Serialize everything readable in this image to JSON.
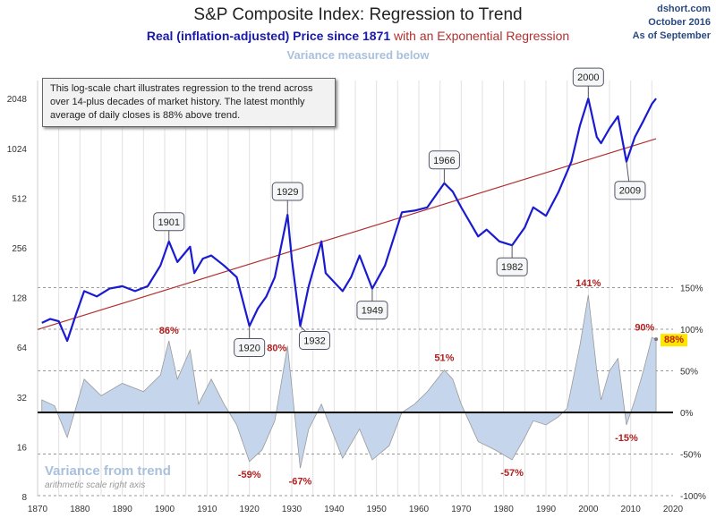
{
  "header": {
    "title": "S&P Composite Index: Regression to Trend",
    "subtitle_blue": "Real (inflation-adjusted) Price since 1871",
    "subtitle_red": " with an Exponential Regression",
    "subtitle_light": "Variance measured below",
    "source": "dshort.com",
    "date": "October 2016",
    "as_of": "As of September"
  },
  "note": "This log-scale chart illustrates regression to the trend across over 14-plus decades of market history. The latest monthly average of daily closes is 88% above trend.",
  "variance_label": {
    "title": "Variance from trend",
    "subtitle": "arithmetic scale right axis"
  },
  "colors": {
    "price": "#1a1ad0",
    "trend": "#b03030",
    "variance_fill": "#c5d6ec",
    "variance_line": "#999999",
    "annotation": "#b02020",
    "highlight": "#ffe600"
  },
  "chart_data": {
    "type": "line",
    "x_ticks": [
      "1870",
      "1880",
      "1890",
      "1900",
      "1910",
      "1920",
      "1930",
      "1940",
      "1950",
      "1960",
      "1970",
      "1980",
      "1990",
      "2000",
      "2010",
      "2020"
    ],
    "xlim": [
      1870,
      2020
    ],
    "left_axis": {
      "scale": "log2",
      "ticks": [
        "8",
        "16",
        "32",
        "64",
        "128",
        "256",
        "512",
        "1024",
        "2048"
      ],
      "ylim": [
        8,
        2048
      ]
    },
    "right_axis": {
      "scale": "linear",
      "ticks": [
        "-100%",
        "-50%",
        "0%",
        "50%",
        "100%",
        "150%"
      ],
      "ylim": [
        -100,
        150
      ]
    },
    "grid": true,
    "series": [
      {
        "kind": "price",
        "x": [
          1871,
          1873,
          1875,
          1877,
          1879,
          1881,
          1884,
          1887,
          1890,
          1893,
          1896,
          1899,
          1901,
          1903,
          1906,
          1907,
          1909,
          1911,
          1914,
          1917,
          1920,
          1922,
          1924,
          1926,
          1929,
          1930,
          1932,
          1934,
          1937,
          1938,
          1942,
          1944,
          1946,
          1949,
          1952,
          1956,
          1959,
          1962,
          1966,
          1968,
          1970,
          1974,
          1976,
          1979,
          1982,
          1985,
          1987,
          1990,
          1993,
          1996,
          1998,
          2000,
          2002,
          2003,
          2005,
          2007,
          2009,
          2011,
          2013,
          2015,
          2016
        ],
        "y": [
          90,
          95,
          92,
          70,
          100,
          140,
          130,
          145,
          150,
          140,
          150,
          200,
          280,
          210,
          260,
          180,
          220,
          230,
          200,
          170,
          86,
          110,
          130,
          170,
          406,
          220,
          86,
          150,
          280,
          180,
          140,
          170,
          230,
          145,
          200,
          420,
          430,
          450,
          630,
          560,
          450,
          300,
          330,
          280,
          265,
          340,
          450,
          400,
          560,
          850,
          1400,
          2050,
          1200,
          1100,
          1350,
          1600,
          850,
          1200,
          1500,
          1900,
          2050
        ]
      },
      {
        "kind": "trend",
        "x": [
          1870,
          2016
        ],
        "y": [
          82,
          1170
        ]
      },
      {
        "kind": "variance",
        "x": [
          1871,
          1874,
          1877,
          1879,
          1881,
          1885,
          1890,
          1895,
          1899,
          1901,
          1903,
          1906,
          1908,
          1911,
          1914,
          1917,
          1920,
          1923,
          1926,
          1929,
          1932,
          1934,
          1937,
          1942,
          1946,
          1949,
          1953,
          1956,
          1959,
          1962,
          1966,
          1968,
          1970,
          1974,
          1978,
          1982,
          1985,
          1987,
          1990,
          1993,
          1995,
          1998,
          2000,
          2002,
          2003,
          2005,
          2007,
          2009,
          2011,
          2013,
          2015,
          2016
        ],
        "y": [
          15,
          8,
          -30,
          5,
          40,
          20,
          35,
          25,
          45,
          86,
          40,
          75,
          10,
          40,
          10,
          -15,
          -59,
          -45,
          -10,
          80,
          -67,
          -20,
          10,
          -55,
          -20,
          -57,
          -40,
          0,
          10,
          25,
          51,
          40,
          10,
          -35,
          -45,
          -57,
          -30,
          -10,
          -15,
          -5,
          5,
          80,
          141,
          50,
          15,
          50,
          65,
          -15,
          15,
          50,
          90,
          88
        ]
      }
    ],
    "callouts": [
      {
        "label": "1901",
        "x": 1901,
        "y": 280
      },
      {
        "label": "1920",
        "x": 1920,
        "y": 86
      },
      {
        "label": "1929",
        "x": 1929,
        "y": 406
      },
      {
        "label": "1932",
        "x": 1932,
        "y": 86
      },
      {
        "label": "1949",
        "x": 1949,
        "y": 145
      },
      {
        "label": "1966",
        "x": 1966,
        "y": 630
      },
      {
        "label": "1982",
        "x": 1982,
        "y": 265
      },
      {
        "label": "2000",
        "x": 2000,
        "y": 2050
      },
      {
        "label": "2009",
        "x": 2009,
        "y": 850
      }
    ],
    "variance_labels": [
      {
        "label": "86%",
        "x": 1901,
        "y": 86
      },
      {
        "label": "80%",
        "x": 1929,
        "y": 80
      },
      {
        "label": "-59%",
        "x": 1920,
        "y": -59
      },
      {
        "label": "-67%",
        "x": 1932,
        "y": -67
      },
      {
        "label": "51%",
        "x": 1966,
        "y": 51
      },
      {
        "label": "-57%",
        "x": 1982,
        "y": -57
      },
      {
        "label": "141%",
        "x": 2000,
        "y": 141
      },
      {
        "label": "-15%",
        "x": 2009,
        "y": -15
      },
      {
        "label": "90%",
        "x": 2015,
        "y": 90
      },
      {
        "label": "88%",
        "x": 2016,
        "y": 88,
        "highlight": true
      }
    ]
  }
}
